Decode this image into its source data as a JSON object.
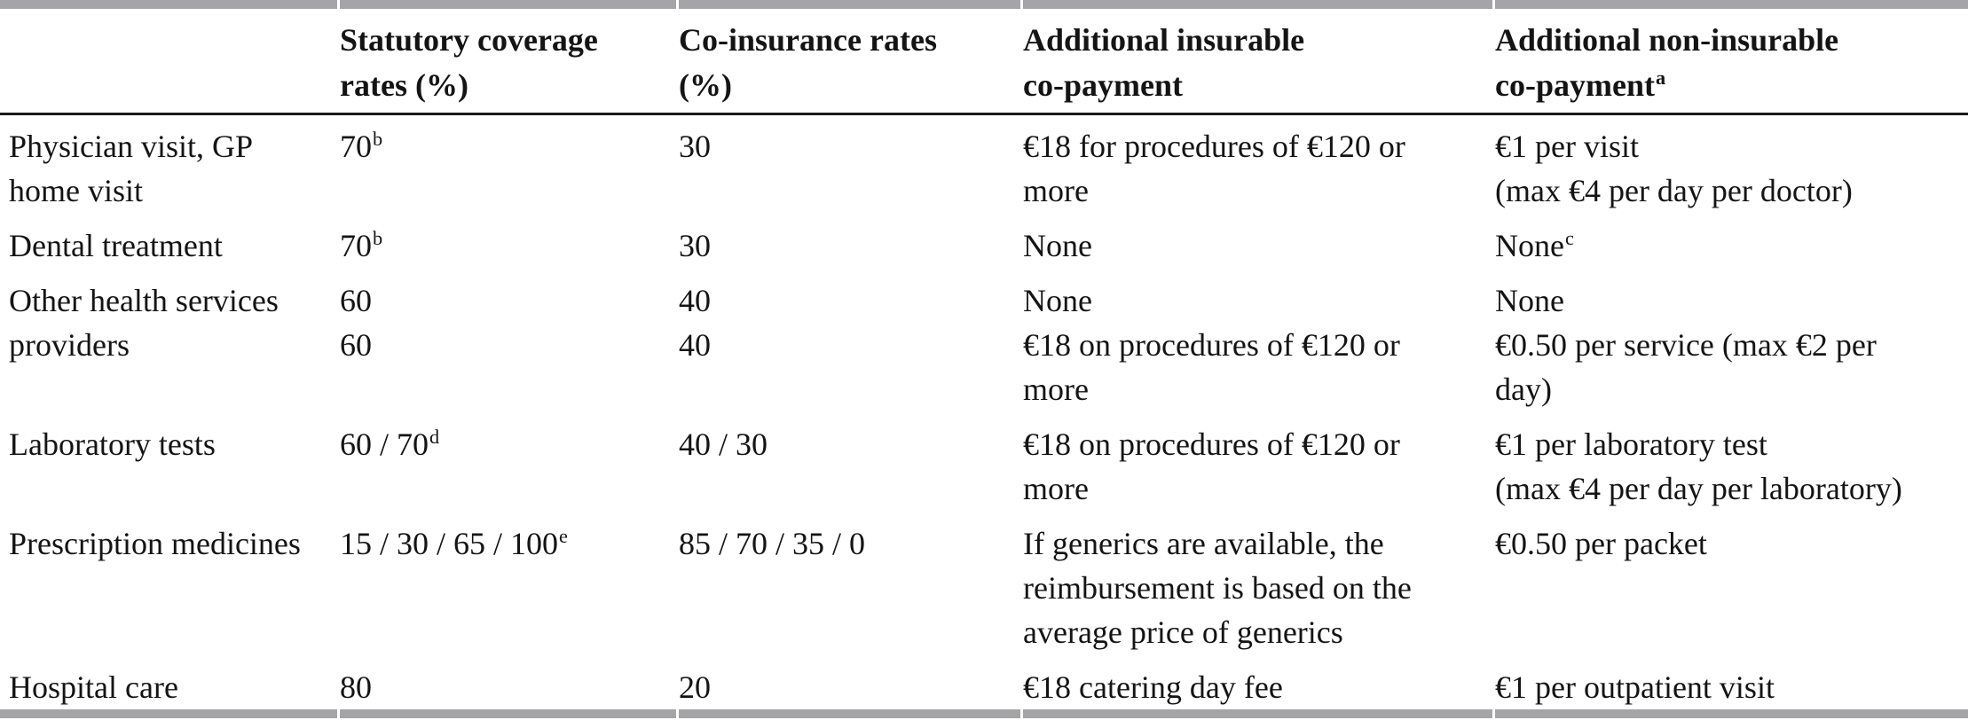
{
  "colors": {
    "text": "#141414",
    "thick_rule_gray": "#a5a5a7",
    "header_rule_black": "#1a1a1a",
    "background": "#ffffff"
  },
  "table": {
    "columns": [
      {
        "id": "service",
        "lines": []
      },
      {
        "id": "statutory-coverage",
        "lines": [
          {
            "t": "Statutory coverage"
          },
          {
            "t": "rates (%)"
          }
        ]
      },
      {
        "id": "co-insurance",
        "lines": [
          {
            "t": "Co-insurance rates"
          },
          {
            "t": "(%)"
          }
        ]
      },
      {
        "id": "insurable-copay",
        "lines": [
          {
            "t": "Additional insurable"
          },
          {
            "t": "co-payment"
          }
        ]
      },
      {
        "id": "non-insurable-copay",
        "lines": [
          {
            "t": "Additional non-insurable"
          },
          {
            "t": "co-payment",
            "sup": "a"
          }
        ]
      }
    ],
    "rows": [
      {
        "cells": [
          {
            "lines": [
              {
                "t": "Physician visit, GP"
              },
              {
                "t": "home visit"
              }
            ]
          },
          {
            "lines": [
              {
                "t": "70",
                "sup": "b"
              }
            ]
          },
          {
            "lines": [
              {
                "t": "30"
              }
            ]
          },
          {
            "lines": [
              {
                "t": "€18 for procedures of €120 or"
              },
              {
                "t": "more"
              }
            ]
          },
          {
            "lines": [
              {
                "t": "€1 per visit"
              },
              {
                "t": "(max €4 per day per doctor)"
              }
            ]
          }
        ]
      },
      {
        "cells": [
          {
            "lines": [
              {
                "t": "Dental treatment"
              }
            ]
          },
          {
            "lines": [
              {
                "t": "70",
                "sup": "b"
              }
            ]
          },
          {
            "lines": [
              {
                "t": "30"
              }
            ]
          },
          {
            "lines": [
              {
                "t": "None"
              }
            ]
          },
          {
            "lines": [
              {
                "t": "None",
                "sup": "c"
              }
            ]
          }
        ]
      },
      {
        "cells": [
          {
            "lines": [
              {
                "t": "Other health services"
              },
              {
                "t": "providers"
              }
            ]
          },
          {
            "lines": [
              {
                "t": "60"
              },
              {
                "t": "60"
              }
            ]
          },
          {
            "lines": [
              {
                "t": "40"
              },
              {
                "t": "40"
              }
            ]
          },
          {
            "lines": [
              {
                "t": "None"
              },
              {
                "t": "€18 on procedures of €120 or"
              },
              {
                "t": "more"
              }
            ]
          },
          {
            "lines": [
              {
                "t": "None"
              },
              {
                "t": "€0.50 per service (max €2 per"
              },
              {
                "t": "day)"
              }
            ]
          }
        ]
      },
      {
        "cells": [
          {
            "lines": [
              {
                "t": "Laboratory tests"
              }
            ]
          },
          {
            "lines": [
              {
                "t": "60 / 70",
                "sup": "d"
              }
            ]
          },
          {
            "lines": [
              {
                "t": "40 / 30"
              }
            ]
          },
          {
            "lines": [
              {
                "t": "€18 on procedures of €120 or"
              },
              {
                "t": "more"
              }
            ]
          },
          {
            "lines": [
              {
                "t": "€1 per laboratory test"
              },
              {
                "t": "(max €4 per day per laboratory)"
              }
            ]
          }
        ]
      },
      {
        "cells": [
          {
            "lines": [
              {
                "t": "Prescription medicines"
              }
            ]
          },
          {
            "lines": [
              {
                "t": "15 / 30 / 65 / 100",
                "sup": "e"
              }
            ]
          },
          {
            "lines": [
              {
                "t": "85 / 70 / 35 / 0"
              }
            ]
          },
          {
            "lines": [
              {
                "t": "If generics are available, the"
              },
              {
                "t": "reimbursement is based on the"
              },
              {
                "t": "average price of generics"
              }
            ]
          },
          {
            "lines": [
              {
                "t": "€0.50 per packet"
              }
            ]
          }
        ]
      },
      {
        "cells": [
          {
            "lines": [
              {
                "t": "Hospital care"
              }
            ]
          },
          {
            "lines": [
              {
                "t": "80"
              }
            ]
          },
          {
            "lines": [
              {
                "t": "20"
              }
            ]
          },
          {
            "lines": [
              {
                "t": "€18 catering day fee"
              }
            ]
          },
          {
            "lines": [
              {
                "t": "€1 per outpatient visit"
              }
            ]
          }
        ]
      }
    ]
  }
}
